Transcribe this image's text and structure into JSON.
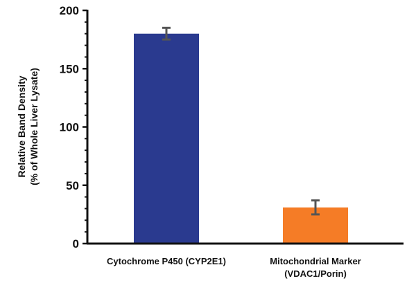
{
  "chart_data": {
    "type": "bar",
    "categories": [
      [
        "Cytochrome P450 (CYP2E1)"
      ],
      [
        "Mitochondrial Marker",
        "(VDAC1/Porin)"
      ]
    ],
    "values": [
      180,
      31
    ],
    "errors": [
      5,
      6
    ],
    "colors": [
      "#2a3a8f",
      "#f57c26"
    ],
    "ylabel": [
      "Relative Band Density",
      "(% of Whole Liver Lysate)"
    ],
    "ylim": [
      0,
      200
    ],
    "yticks": [
      0,
      50,
      100,
      150,
      200
    ],
    "grid": false,
    "legend": "none"
  }
}
